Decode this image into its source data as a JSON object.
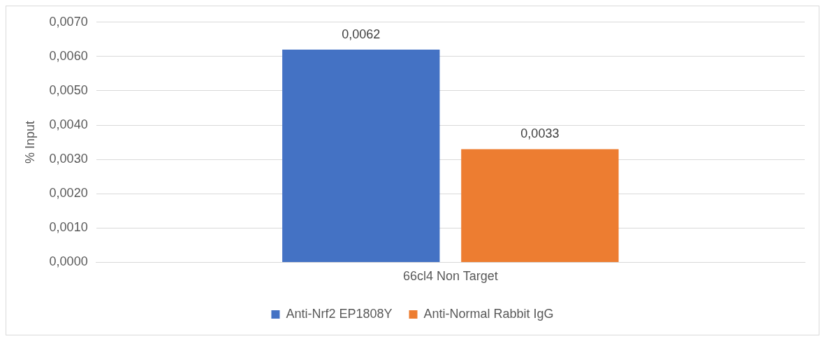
{
  "chart_data": {
    "type": "bar",
    "ylabel": "% Input",
    "categories": [
      "66cl4 Non Target"
    ],
    "series": [
      {
        "name": "Anti-Nrf2 EP1808Y",
        "color": "#4472c4",
        "values": [
          0.0062
        ],
        "value_labels": [
          "0,0062"
        ]
      },
      {
        "name": "Anti-Normal Rabbit IgG",
        "color": "#ed7d31",
        "values": [
          0.0033
        ],
        "value_labels": [
          "0,0033"
        ]
      }
    ],
    "ylim": [
      0,
      0.007
    ],
    "yticks": [
      {
        "value": 0,
        "label": "0,0000"
      },
      {
        "value": 0.001,
        "label": "0,0010"
      },
      {
        "value": 0.002,
        "label": "0,0020"
      },
      {
        "value": 0.003,
        "label": "0,0030"
      },
      {
        "value": 0.004,
        "label": "0,0040"
      },
      {
        "value": 0.005,
        "label": "0,0050"
      },
      {
        "value": 0.006,
        "label": "0,0060"
      },
      {
        "value": 0.007,
        "label": "0,0070"
      }
    ],
    "grid": "y",
    "legend": "bottom"
  }
}
